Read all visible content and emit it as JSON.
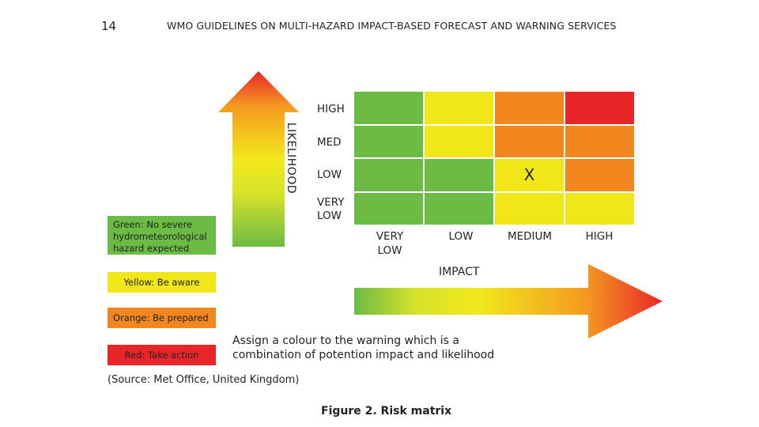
{
  "header": {
    "page_number": "14",
    "title": "WMO GUIDELINES ON MULTI-HAZARD IMPACT-BASED FORECAST AND WARNING SERVICES"
  },
  "axes": {
    "likelihood_label": "LIKELIHOOD",
    "impact_label": "IMPACT"
  },
  "rows": [
    {
      "label": "HIGH",
      "cells": [
        "green",
        "yellow",
        "orange",
        "red"
      ]
    },
    {
      "label": "MED",
      "cells": [
        "green",
        "yellow",
        "orange",
        "orange"
      ]
    },
    {
      "label": "LOW",
      "cells": [
        "green",
        "green",
        "yellow",
        "orange"
      ]
    },
    {
      "label": "VERY\nLOW",
      "cells": [
        "green",
        "green",
        "yellow",
        "yellow"
      ]
    }
  ],
  "columns": [
    "VERY\nLOW",
    "LOW",
    "MEDIUM",
    "HIGH"
  ],
  "marker": {
    "text": "X",
    "row": 2,
    "col": 2
  },
  "colors": {
    "green": "#6cbb45",
    "yellow": "#f0e619",
    "orange": "#f2861f",
    "red": "#e8262a"
  },
  "legend": {
    "green": "Green: No severe hydrometeorological hazard expected",
    "yellow": "Yellow: Be aware",
    "orange": "Orange: Be prepared",
    "red": "Red: Take action"
  },
  "instruction": "Assign a colour to the warning which is a combination of potention impact and likelihood",
  "source": "(Source: Met Office, United Kingdom)",
  "caption": "Figure 2. Risk matrix"
}
